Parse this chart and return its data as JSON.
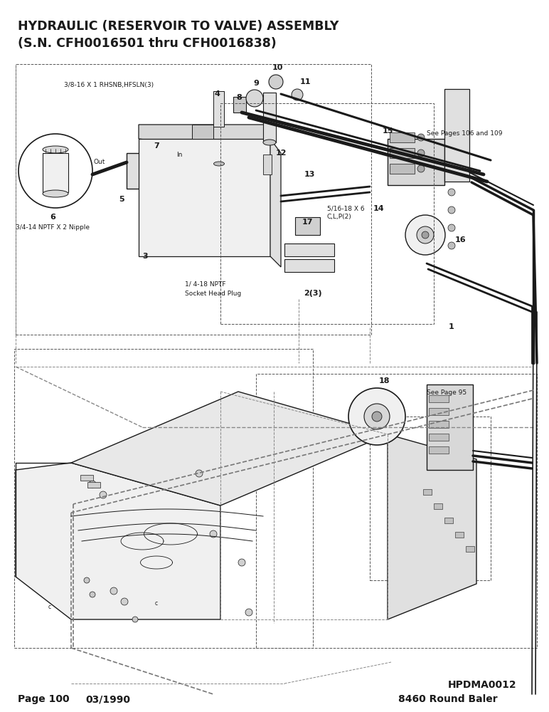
{
  "title_line1": "HYDRAULIC (RESERVOIR TO VALVE) ASSEMBLY",
  "title_line2": "(S.N. CFH0016501 thru CFH0016838)",
  "footer_left1": "Page 100",
  "footer_left2": "03/1990",
  "footer_right1": "HPDMA0012",
  "footer_right2": "8460 Round Baler",
  "bg_color": "#ffffff",
  "text_color": "#1a1a1a",
  "title_fontsize": 12.5,
  "footer_fontsize": 10,
  "ann_fontsize": 6.5,
  "label_fontsize": 8
}
